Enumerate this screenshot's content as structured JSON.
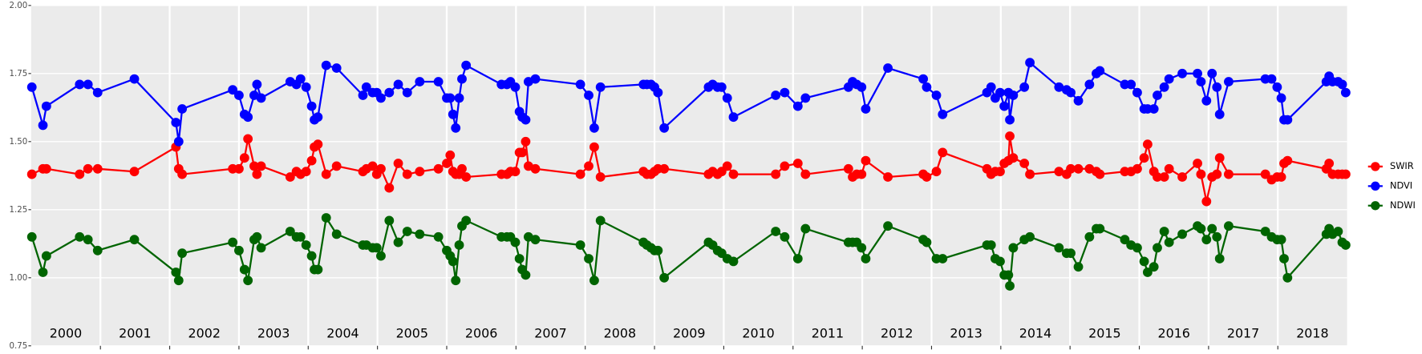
{
  "chart_data": {
    "type": "line",
    "x": [
      2000.01,
      2000.17,
      2000.22,
      2000.7,
      2000.82,
      2000.96,
      2001.49,
      2002.09,
      2002.13,
      2002.18,
      2002.91,
      2003.0,
      2003.08,
      2003.13,
      2003.22,
      2003.26,
      2003.32,
      2003.74,
      2003.83,
      2003.89,
      2003.97,
      2004.05,
      2004.09,
      2004.14,
      2004.26,
      2004.41,
      2004.79,
      2004.84,
      2004.93,
      2004.99,
      2005.05,
      2005.17,
      2005.3,
      2005.43,
      2005.61,
      2005.88,
      2006.0,
      2006.05,
      2006.09,
      2006.13,
      2006.18,
      2006.22,
      2006.28,
      2006.79,
      2006.87,
      2006.92,
      2006.99,
      2007.05,
      2007.09,
      2007.14,
      2007.18,
      2007.28,
      2007.93,
      2008.05,
      2008.13,
      2008.22,
      2008.84,
      2008.89,
      2008.95,
      2009.0,
      2009.05,
      2009.14,
      2009.78,
      2009.84,
      2009.91,
      2009.97,
      2010.05,
      2010.14,
      2010.75,
      2010.88,
      2011.07,
      2011.18,
      2011.8,
      2011.86,
      2011.92,
      2011.99,
      2012.05,
      2012.37,
      2012.88,
      2012.93,
      2013.07,
      2013.16,
      2013.8,
      2013.86,
      2013.92,
      2013.99,
      2014.05,
      2014.11,
      2014.13,
      2014.18,
      2014.34,
      2014.42,
      2014.84,
      2014.95,
      2015.01,
      2015.12,
      2015.28,
      2015.38,
      2015.43,
      2015.79,
      2015.88,
      2015.97,
      2016.07,
      2016.12,
      2016.21,
      2016.26,
      2016.36,
      2016.43,
      2016.62,
      2016.84,
      2016.89,
      2016.97,
      2017.05,
      2017.12,
      2017.16,
      2017.29,
      2017.82,
      2017.91,
      2017.99,
      2018.05,
      2018.09,
      2018.14,
      2018.7,
      2018.74,
      2018.79,
      2018.87,
      2018.93,
      2018.98
    ],
    "series": [
      {
        "name": "SWIR",
        "color": "#ff0000",
        "values": [
          1.38,
          1.4,
          1.4,
          1.38,
          1.4,
          1.4,
          1.39,
          1.48,
          1.4,
          1.38,
          1.4,
          1.4,
          1.44,
          1.51,
          1.41,
          1.38,
          1.41,
          1.37,
          1.39,
          1.38,
          1.39,
          1.43,
          1.48,
          1.49,
          1.38,
          1.41,
          1.39,
          1.4,
          1.41,
          1.38,
          1.4,
          1.33,
          1.42,
          1.38,
          1.39,
          1.4,
          1.42,
          1.45,
          1.39,
          1.38,
          1.38,
          1.4,
          1.37,
          1.38,
          1.38,
          1.39,
          1.39,
          1.46,
          1.46,
          1.5,
          1.41,
          1.4,
          1.38,
          1.41,
          1.48,
          1.37,
          1.39,
          1.38,
          1.38,
          1.39,
          1.4,
          1.4,
          1.38,
          1.39,
          1.38,
          1.39,
          1.41,
          1.38,
          1.38,
          1.41,
          1.42,
          1.38,
          1.4,
          1.37,
          1.38,
          1.38,
          1.43,
          1.37,
          1.38,
          1.37,
          1.39,
          1.46,
          1.4,
          1.38,
          1.39,
          1.39,
          1.42,
          1.43,
          1.52,
          1.44,
          1.42,
          1.38,
          1.39,
          1.38,
          1.4,
          1.4,
          1.4,
          1.39,
          1.38,
          1.39,
          1.39,
          1.4,
          1.44,
          1.49,
          1.39,
          1.37,
          1.37,
          1.4,
          1.37,
          1.42,
          1.38,
          1.28,
          1.37,
          1.38,
          1.44,
          1.38,
          1.38,
          1.36,
          1.37,
          1.37,
          1.42,
          1.43,
          1.4,
          1.42,
          1.38,
          1.38,
          1.38,
          1.38
        ]
      },
      {
        "name": "NDVI",
        "color": "#0000ff",
        "values": [
          1.7,
          1.56,
          1.63,
          1.71,
          1.71,
          1.68,
          1.73,
          1.57,
          1.5,
          1.62,
          1.69,
          1.67,
          1.6,
          1.59,
          1.67,
          1.71,
          1.66,
          1.72,
          1.71,
          1.73,
          1.7,
          1.63,
          1.58,
          1.59,
          1.78,
          1.77,
          1.67,
          1.7,
          1.68,
          1.68,
          1.66,
          1.68,
          1.71,
          1.68,
          1.72,
          1.72,
          1.66,
          1.66,
          1.6,
          1.55,
          1.66,
          1.73,
          1.78,
          1.71,
          1.71,
          1.72,
          1.7,
          1.61,
          1.59,
          1.58,
          1.72,
          1.73,
          1.71,
          1.67,
          1.55,
          1.7,
          1.71,
          1.71,
          1.71,
          1.7,
          1.68,
          1.55,
          1.7,
          1.71,
          1.7,
          1.7,
          1.66,
          1.59,
          1.67,
          1.68,
          1.63,
          1.66,
          1.7,
          1.72,
          1.71,
          1.7,
          1.62,
          1.77,
          1.73,
          1.7,
          1.67,
          1.6,
          1.68,
          1.7,
          1.66,
          1.68,
          1.63,
          1.68,
          1.58,
          1.67,
          1.7,
          1.79,
          1.7,
          1.69,
          1.68,
          1.65,
          1.71,
          1.75,
          1.76,
          1.71,
          1.71,
          1.68,
          1.62,
          1.62,
          1.62,
          1.67,
          1.7,
          1.73,
          1.75,
          1.75,
          1.72,
          1.65,
          1.75,
          1.7,
          1.6,
          1.72,
          1.73,
          1.73,
          1.7,
          1.66,
          1.58,
          1.58,
          1.72,
          1.74,
          1.72,
          1.72,
          1.71,
          1.68
        ]
      },
      {
        "name": "NDWI",
        "color": "#006400",
        "values": [
          1.15,
          1.02,
          1.08,
          1.15,
          1.14,
          1.1,
          1.14,
          1.02,
          0.99,
          1.09,
          1.13,
          1.1,
          1.03,
          0.99,
          1.14,
          1.15,
          1.11,
          1.17,
          1.15,
          1.15,
          1.12,
          1.08,
          1.03,
          1.03,
          1.22,
          1.16,
          1.12,
          1.12,
          1.11,
          1.11,
          1.08,
          1.21,
          1.13,
          1.17,
          1.16,
          1.15,
          1.1,
          1.08,
          1.06,
          0.99,
          1.12,
          1.19,
          1.21,
          1.15,
          1.15,
          1.15,
          1.13,
          1.07,
          1.03,
          1.01,
          1.15,
          1.14,
          1.12,
          1.07,
          0.99,
          1.21,
          1.13,
          1.12,
          1.11,
          1.1,
          1.1,
          1.0,
          1.13,
          1.12,
          1.1,
          1.09,
          1.07,
          1.06,
          1.17,
          1.15,
          1.07,
          1.18,
          1.13,
          1.13,
          1.13,
          1.11,
          1.07,
          1.19,
          1.14,
          1.13,
          1.07,
          1.07,
          1.12,
          1.12,
          1.07,
          1.06,
          1.01,
          1.01,
          0.97,
          1.11,
          1.14,
          1.15,
          1.11,
          1.09,
          1.09,
          1.04,
          1.15,
          1.18,
          1.18,
          1.14,
          1.12,
          1.11,
          1.06,
          1.02,
          1.04,
          1.11,
          1.17,
          1.13,
          1.16,
          1.19,
          1.18,
          1.14,
          1.18,
          1.15,
          1.07,
          1.19,
          1.17,
          1.15,
          1.14,
          1.14,
          1.07,
          1.0,
          1.16,
          1.18,
          1.16,
          1.17,
          1.13,
          1.12
        ]
      }
    ],
    "xlim": [
      2000,
      2019
    ],
    "xticks": [
      2001,
      2002,
      2003,
      2004,
      2005,
      2006,
      2007,
      2008,
      2009,
      2010,
      2011,
      2012,
      2013,
      2014,
      2015,
      2016,
      2017,
      2018
    ],
    "year_labels": [
      "2000",
      "2001",
      "2002",
      "2003",
      "2004",
      "2005",
      "2006",
      "2007",
      "2008",
      "2009",
      "2010",
      "2011",
      "2012",
      "2013",
      "2014",
      "2015",
      "2016",
      "2017",
      "2018"
    ],
    "ylim": [
      0.75,
      2.0
    ],
    "yticks": [
      0.75,
      {
        "value": 1.0,
        "label": "1.00"
      },
      1.25,
      {
        "value": 1.5,
        "label": "1.50"
      },
      1.75,
      {
        "value": 2.0,
        "label": "2.00"
      }
    ],
    "grid": true,
    "legend": "right"
  }
}
